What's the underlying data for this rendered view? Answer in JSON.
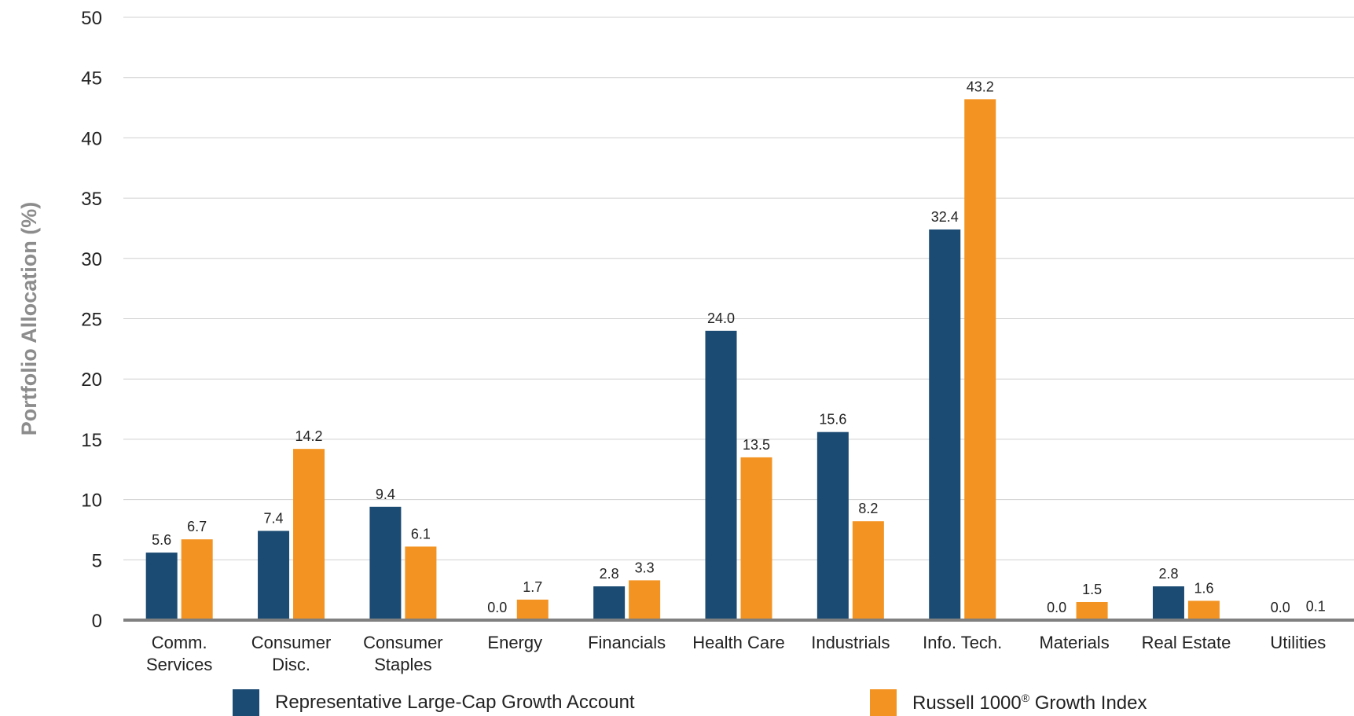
{
  "chart_data": {
    "type": "bar",
    "ylabel": "Portfolio Allocation (%)",
    "ylim": [
      0,
      50
    ],
    "yticks": [
      0,
      5,
      10,
      15,
      20,
      25,
      30,
      35,
      40,
      45,
      50
    ],
    "grid": true,
    "legend_position": "bottom",
    "categories": [
      [
        "Comm.",
        "Services"
      ],
      [
        "Consumer",
        "Disc."
      ],
      [
        "Consumer",
        "Staples"
      ],
      [
        "Energy"
      ],
      [
        "Financials"
      ],
      [
        "Health Care"
      ],
      [
        "Industrials"
      ],
      [
        "Info. Tech."
      ],
      [
        "Materials"
      ],
      [
        "Real Estate"
      ],
      [
        "Utilities"
      ]
    ],
    "series": [
      {
        "name": "Representative Large-Cap Growth Account",
        "color": "#1b4a72",
        "values": [
          5.6,
          7.4,
          9.4,
          0.0,
          2.8,
          24.0,
          15.6,
          32.4,
          0.0,
          2.8,
          0.0
        ],
        "labels": [
          "5.6",
          "7.4",
          "9.4",
          "0.0",
          "2.8",
          "24.0",
          "15.6",
          "32.4",
          "0.0",
          "2.8",
          "0.0"
        ]
      },
      {
        "name": "Russell 1000® Growth Index",
        "color": "#f39321",
        "values": [
          6.7,
          14.2,
          6.1,
          1.7,
          3.3,
          13.5,
          8.2,
          43.2,
          1.5,
          1.6,
          0.1
        ],
        "labels": [
          "6.7",
          "14.2",
          "6.1",
          "1.7",
          "3.3",
          "13.5",
          "8.2",
          "43.2",
          "1.5",
          "1.6",
          "0.1"
        ]
      }
    ]
  },
  "legend": {
    "series1_label": "Representative Large-Cap Growth Account",
    "series2_main": "Russell 1000",
    "series2_sup": "®",
    "series2_rest": " Growth Index"
  }
}
